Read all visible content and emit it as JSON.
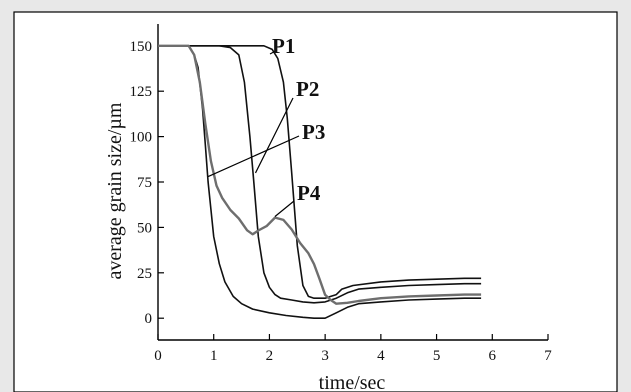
{
  "chart_data": {
    "type": "line",
    "title": "",
    "xlabel": "time/sec",
    "ylabel": "average grain size/µm",
    "xlim": [
      0,
      7
    ],
    "ylim": [
      -12,
      162
    ],
    "x_ticks": [
      "0",
      "1",
      "2",
      "3",
      "4",
      "5",
      "6",
      "7"
    ],
    "y_ticks": [
      "0",
      "25",
      "50",
      "75",
      "100",
      "125",
      "150"
    ],
    "grid": false,
    "legend": "none",
    "colors": {
      "frame": "#000000",
      "axes": "#000000",
      "curve": "#111111",
      "noisy_curve": "#6e6e6e",
      "background": "#ffffff",
      "page": "#e8e8e8"
    },
    "series": [
      {
        "name": "P1",
        "color": "#111111",
        "x": [
          0.0,
          1.5,
          1.7,
          1.9,
          2.05,
          2.15,
          2.25,
          2.32,
          2.4,
          2.5,
          2.6,
          2.7,
          2.8,
          3.0,
          3.1,
          3.2,
          3.3,
          3.5,
          4.0,
          4.5,
          5.0,
          5.5,
          5.8
        ],
        "y": [
          150,
          150,
          150,
          150,
          148,
          143,
          130,
          110,
          80,
          40,
          18,
          12,
          11,
          11,
          12,
          13,
          16,
          18,
          20,
          21,
          21.5,
          22,
          22
        ]
      },
      {
        "name": "P2",
        "color": "#111111",
        "x": [
          0.0,
          1.1,
          1.3,
          1.45,
          1.55,
          1.65,
          1.72,
          1.8,
          1.9,
          2.0,
          2.1,
          2.2,
          2.4,
          2.6,
          2.8,
          3.0,
          3.2,
          3.4,
          3.6,
          4.0,
          4.5,
          5.0,
          5.5,
          5.8
        ],
        "y": [
          150,
          150,
          149,
          145,
          130,
          100,
          75,
          45,
          25,
          17,
          13,
          11,
          10,
          9,
          8.5,
          9,
          11,
          14,
          16,
          17,
          18,
          18.5,
          19,
          19
        ]
      },
      {
        "name": "P3",
        "color": "#111111",
        "x": [
          0.0,
          0.55,
          0.65,
          0.72,
          0.8,
          0.85,
          0.9,
          0.95,
          1.0,
          1.1,
          1.2,
          1.35,
          1.5,
          1.7,
          2.0,
          2.3,
          2.6,
          2.8,
          3.0,
          3.2,
          3.4,
          3.6,
          4.0,
          4.5,
          5.0,
          5.5,
          5.8
        ],
        "y": [
          150,
          150,
          145,
          138,
          115,
          95,
          75,
          60,
          45,
          30,
          20,
          12,
          8,
          5,
          3,
          1.5,
          0.5,
          0,
          0,
          3,
          6,
          8,
          9,
          10,
          10.5,
          11,
          11
        ]
      },
      {
        "name": "P4",
        "color": "#6e6e6e",
        "x": [
          0.0,
          0.55,
          0.65,
          0.75,
          0.85,
          0.95,
          1.05,
          1.15,
          1.3,
          1.45,
          1.6,
          1.7,
          1.8,
          1.95,
          2.1,
          2.25,
          2.4,
          2.55,
          2.7,
          2.8,
          2.9,
          3.0,
          3.1,
          3.2,
          3.4,
          3.6,
          4.0,
          4.5,
          5.0,
          5.5,
          5.8
        ],
        "y": [
          150,
          150,
          145,
          130,
          105,
          85,
          72,
          66,
          60,
          56,
          50,
          48,
          50,
          52,
          56,
          54,
          48,
          40,
          34,
          28,
          20,
          12,
          10,
          8,
          8.5,
          9.5,
          11,
          12,
          12.5,
          13,
          13
        ]
      }
    ],
    "annotations": [
      {
        "text": "P1",
        "series": "P1"
      },
      {
        "text": "P2",
        "series": "P2"
      },
      {
        "text": "P3",
        "series": "P3"
      },
      {
        "text": "P4",
        "series": "P4"
      }
    ]
  }
}
